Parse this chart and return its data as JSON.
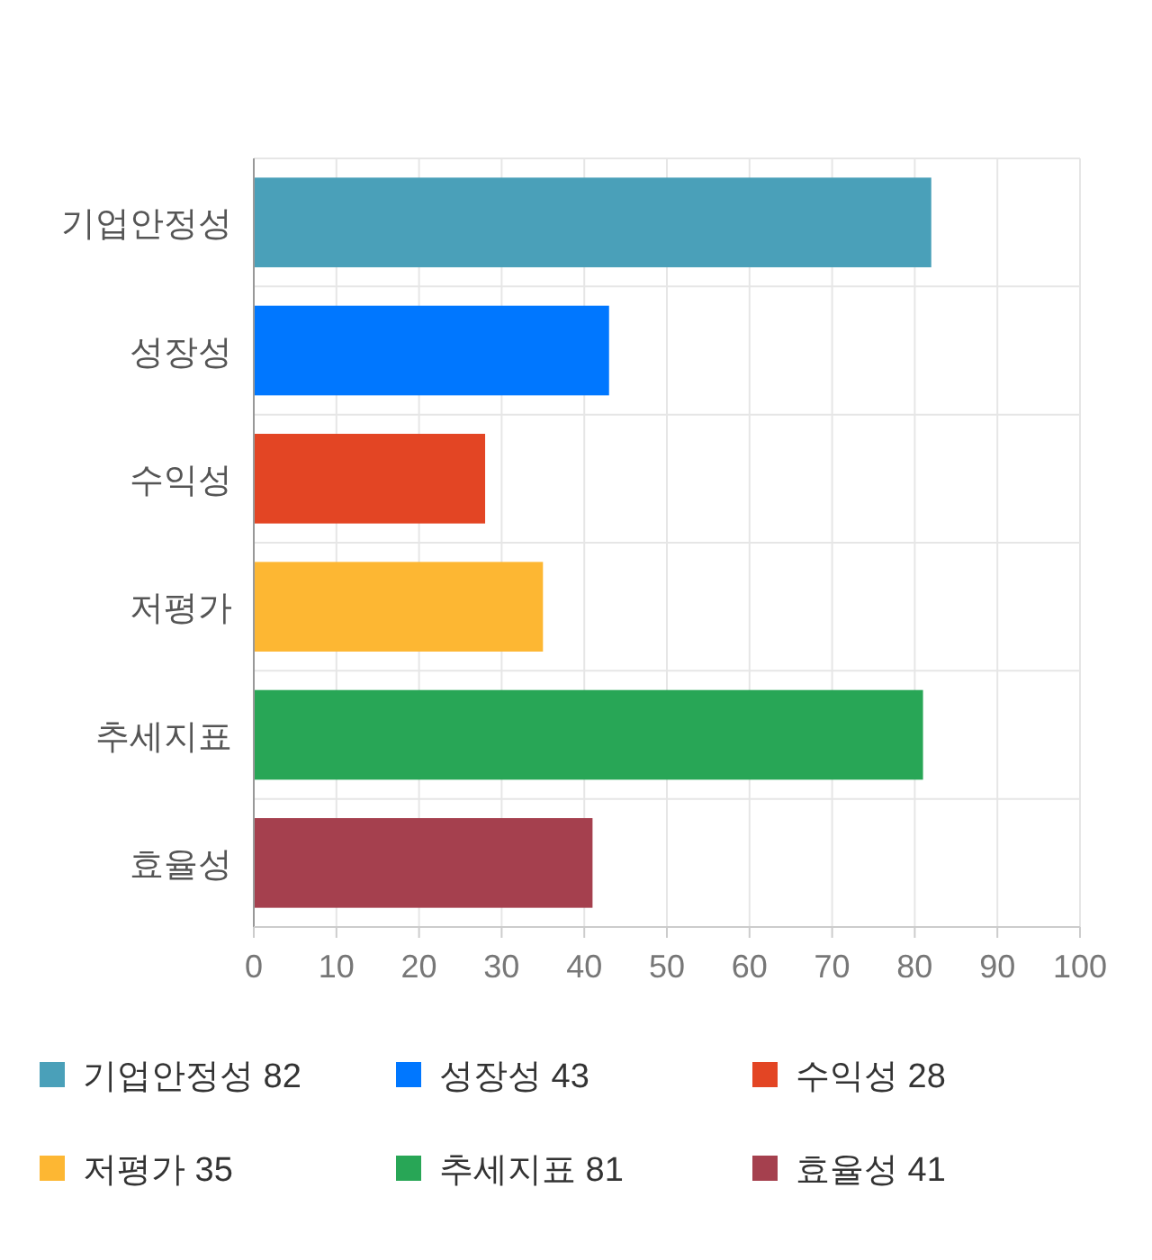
{
  "chart_data": {
    "type": "bar",
    "orientation": "horizontal",
    "categories": [
      "기업안정성",
      "성장성",
      "수익성",
      "저평가",
      "추세지표",
      "효율성"
    ],
    "series": [
      {
        "name": "기업안정성 82",
        "color": "#4aa0b9",
        "values": [
          82,
          null,
          null,
          null,
          null,
          null
        ]
      },
      {
        "name": "성장성 43",
        "color": "#0077ff",
        "values": [
          null,
          43,
          null,
          null,
          null,
          null
        ]
      },
      {
        "name": "수익성 28",
        "color": "#e34524",
        "values": [
          null,
          null,
          28,
          null,
          null,
          null
        ]
      },
      {
        "name": "저평가 35",
        "color": "#fdb733",
        "values": [
          null,
          null,
          null,
          35,
          null,
          null
        ]
      },
      {
        "name": "추세지표 81",
        "color": "#28a656",
        "values": [
          null,
          null,
          null,
          null,
          81,
          null
        ]
      },
      {
        "name": "효율성 41",
        "color": "#a5404e",
        "values": [
          null,
          null,
          null,
          null,
          null,
          41
        ]
      }
    ],
    "xlim": [
      0,
      100
    ],
    "xticks": [
      0,
      10,
      20,
      30,
      40,
      50,
      60,
      70,
      80,
      90,
      100
    ],
    "grid": true,
    "legend": "bottom"
  }
}
